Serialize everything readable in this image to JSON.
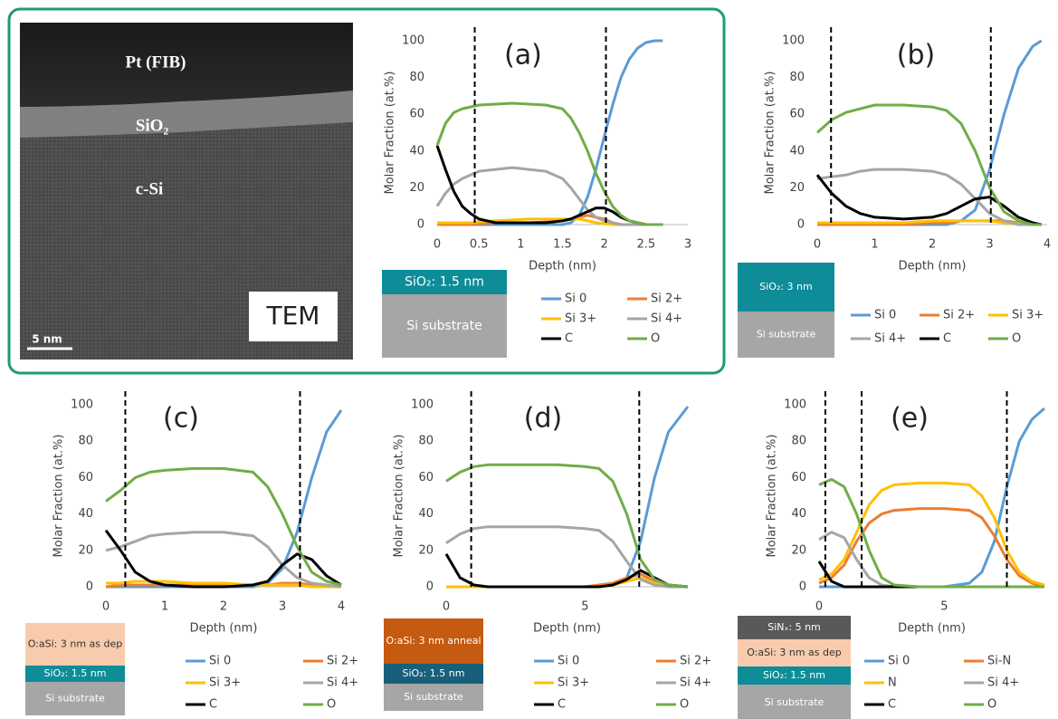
{
  "tem": {
    "layer_top": "Pt (FIB)",
    "layer_mid": "SiO₂",
    "layer_bottom": "c-Si",
    "label": "TEM",
    "scale_bar": "5 nm"
  },
  "chart_data": [
    {
      "type": "line",
      "label": "(a)",
      "y_label": "Molar Fraction (at.%)",
      "x_label": "Depth (nm)",
      "xlim": [
        0,
        3
      ],
      "xticks": [
        0,
        0.5,
        1,
        1.5,
        2,
        2.5,
        3
      ],
      "ylim": [
        0,
        100
      ],
      "yticks": [
        0,
        20,
        40,
        60,
        80,
        100
      ],
      "vlines": [
        0.45,
        2.02
      ],
      "legend_columns": 2,
      "stack": [
        {
          "label": "SiO₂: 1.5 nm",
          "color": "#0e8c98",
          "text_color": "#ffffff"
        },
        {
          "label": "Si substrate",
          "color": "#a6a6a6",
          "text_color": "#ffffff"
        }
      ],
      "x": [
        0,
        0.1,
        0.2,
        0.3,
        0.4,
        0.5,
        0.7,
        0.9,
        1.1,
        1.3,
        1.5,
        1.6,
        1.7,
        1.8,
        1.9,
        2.0,
        2.1,
        2.2,
        2.3,
        2.4,
        2.5,
        2.6,
        2.7
      ],
      "series": [
        {
          "name": "Si 0",
          "color": "#5b9bd5",
          "values": [
            0,
            0,
            0,
            0,
            0,
            0,
            0,
            0,
            0,
            0,
            0,
            1,
            5,
            15,
            30,
            48,
            65,
            80,
            90,
            96,
            99,
            100,
            100
          ]
        },
        {
          "name": "Si 2+",
          "color": "#ed7d31",
          "values": [
            0,
            0,
            0,
            0,
            0,
            0.5,
            1,
            1,
            1,
            1.5,
            2,
            3,
            4,
            5,
            4,
            3,
            1,
            0,
            0,
            0,
            0,
            0,
            0
          ]
        },
        {
          "name": "Si 3+",
          "color": "#ffc000",
          "values": [
            1,
            1,
            1,
            1,
            1,
            1.5,
            2,
            2.5,
            3,
            3,
            3,
            3,
            3,
            2,
            1,
            0.5,
            0,
            0,
            0,
            0,
            0,
            0,
            0
          ]
        },
        {
          "name": "Si 4+",
          "color": "#a5a5a5",
          "values": [
            10,
            17,
            22,
            25,
            27,
            29,
            30,
            31,
            30,
            29,
            25,
            20,
            14,
            8,
            4,
            2,
            1,
            0,
            0,
            0,
            0,
            0,
            0
          ]
        },
        {
          "name": "C",
          "color": "#000000",
          "values": [
            43,
            30,
            18,
            10,
            6,
            3,
            1,
            1,
            1,
            1,
            2,
            3,
            5,
            7,
            9,
            9,
            7,
            4,
            2,
            1,
            0,
            0,
            0
          ]
        },
        {
          "name": "O",
          "color": "#70ad47",
          "values": [
            43,
            55,
            61,
            63,
            64,
            65,
            65.5,
            66,
            65.5,
            65,
            63,
            58,
            50,
            40,
            28,
            18,
            10,
            5,
            2,
            1,
            0,
            0,
            0
          ]
        }
      ]
    },
    {
      "type": "line",
      "label": "(b)",
      "y_label": "Molar Fraction (at.%)",
      "x_label": "Depth (nm)",
      "xlim": [
        0,
        4
      ],
      "xticks": [
        0,
        1,
        2,
        3,
        4
      ],
      "ylim": [
        0,
        100
      ],
      "yticks": [
        0,
        20,
        40,
        60,
        80,
        100
      ],
      "vlines": [
        0.24,
        3.02
      ],
      "legend_columns": 3,
      "stack": [
        {
          "label": "SiO₂: 3 nm",
          "color": "#0e8c98",
          "text_color": "#ffffff"
        },
        {
          "label": "Si substrate",
          "color": "#a6a6a6",
          "text_color": "#ffffff"
        }
      ],
      "x": [
        0,
        0.25,
        0.5,
        0.75,
        1,
        1.5,
        2,
        2.25,
        2.5,
        2.75,
        3,
        3.25,
        3.5,
        3.75,
        3.9
      ],
      "series": [
        {
          "name": "Si 0",
          "color": "#5b9bd5",
          "values": [
            0,
            0,
            0,
            0,
            0,
            0,
            0,
            0,
            2,
            8,
            30,
            60,
            85,
            97,
            100
          ]
        },
        {
          "name": "Si 2+",
          "color": "#ed7d31",
          "values": [
            0,
            0,
            0,
            0,
            0,
            0,
            1,
            1,
            2,
            2,
            2,
            2,
            1,
            0,
            0
          ]
        },
        {
          "name": "Si 3+",
          "color": "#ffc000",
          "values": [
            1,
            1,
            1,
            1,
            1,
            1,
            2,
            2,
            2,
            2,
            2,
            1,
            0.5,
            0,
            0
          ]
        },
        {
          "name": "Si 4+",
          "color": "#a5a5a5",
          "values": [
            25,
            26,
            27,
            29,
            30,
            30,
            29,
            27,
            22,
            14,
            6,
            2,
            0,
            0,
            0
          ]
        },
        {
          "name": "C",
          "color": "#000000",
          "values": [
            27,
            17,
            10,
            6,
            4,
            3,
            4,
            6,
            10,
            14,
            15,
            10,
            4,
            1,
            0
          ]
        },
        {
          "name": "O",
          "color": "#70ad47",
          "values": [
            50,
            57,
            61,
            63,
            65,
            65,
            64,
            62,
            55,
            40,
            20,
            7,
            2,
            0,
            0
          ]
        }
      ]
    },
    {
      "type": "line",
      "label": "(c)",
      "y_label": "Molar Fraction (at.%)",
      "x_label": "Depth (nm)",
      "xlim": [
        0,
        4
      ],
      "xticks": [
        0,
        1,
        2,
        3,
        4
      ],
      "ylim": [
        0,
        100
      ],
      "yticks": [
        0,
        20,
        40,
        60,
        80,
        100
      ],
      "vlines": [
        0.33,
        3.3
      ],
      "legend_columns": 2,
      "stack": [
        {
          "label": "O:aSi: 3 nm as dep",
          "color": "#f8cbad",
          "text_color": "#333333"
        },
        {
          "label": "SiO₂: 1.5 nm",
          "color": "#0e8c98",
          "text_color": "#ffffff"
        },
        {
          "label": "Si substrate",
          "color": "#a6a6a6",
          "text_color": "#ffffff"
        }
      ],
      "x": [
        0,
        0.25,
        0.5,
        0.75,
        1,
        1.5,
        2,
        2.5,
        2.75,
        3,
        3.25,
        3.5,
        3.75,
        4
      ],
      "series": [
        {
          "name": "Si 0",
          "color": "#5b9bd5",
          "values": [
            0,
            0,
            0,
            0,
            0,
            0,
            0,
            0,
            2,
            10,
            30,
            60,
            85,
            97
          ]
        },
        {
          "name": "Si 2+",
          "color": "#ed7d31",
          "values": [
            0,
            1,
            1,
            1,
            1,
            1,
            1,
            1,
            1,
            2,
            2,
            1,
            0,
            0
          ]
        },
        {
          "name": "Si 3+",
          "color": "#ffc000",
          "values": [
            2,
            2,
            3,
            3,
            3,
            2,
            2,
            1,
            1,
            1,
            1,
            0,
            0,
            0
          ]
        },
        {
          "name": "Si 4+",
          "color": "#a5a5a5",
          "values": [
            20,
            22,
            25,
            28,
            29,
            30,
            30,
            28,
            22,
            12,
            5,
            2,
            1,
            0
          ]
        },
        {
          "name": "C",
          "color": "#000000",
          "values": [
            31,
            20,
            8,
            3,
            1,
            0,
            0,
            1,
            3,
            12,
            18,
            15,
            6,
            1
          ]
        },
        {
          "name": "O",
          "color": "#70ad47",
          "values": [
            47,
            53,
            60,
            63,
            64,
            65,
            65,
            63,
            55,
            40,
            22,
            8,
            3,
            1
          ]
        }
      ]
    },
    {
      "type": "line",
      "label": "(d)",
      "y_label": "Molar Fraction (at.%)",
      "x_label": "Depth (nm)",
      "xlim": [
        0,
        8.7
      ],
      "xticks": [
        0,
        5
      ],
      "ylim": [
        0,
        100
      ],
      "yticks": [
        0,
        20,
        40,
        60,
        80,
        100
      ],
      "vlines": [
        0.9,
        6.95
      ],
      "legend_columns": 2,
      "stack": [
        {
          "label": "O:aSi: 3 nm anneal",
          "color": "#c55a11",
          "text_color": "#ffffff"
        },
        {
          "label": "SiO₂: 1.5 nm",
          "color": "#175f7a",
          "text_color": "#ffffff"
        },
        {
          "label": "Si substrate",
          "color": "#a6a6a6",
          "text_color": "#ffffff"
        }
      ],
      "x": [
        0,
        0.5,
        1,
        1.5,
        2,
        3,
        4,
        5,
        5.5,
        6,
        6.5,
        7,
        7.5,
        8,
        8.7
      ],
      "series": [
        {
          "name": "Si 0",
          "color": "#5b9bd5",
          "values": [
            0,
            0,
            0,
            0,
            0,
            0,
            0,
            0,
            0,
            1,
            5,
            25,
            60,
            85,
            99
          ]
        },
        {
          "name": "Si 2+",
          "color": "#ed7d31",
          "values": [
            0,
            0,
            0,
            0,
            0,
            0,
            0,
            0,
            1,
            2,
            5,
            7,
            3,
            1,
            0
          ]
        },
        {
          "name": "Si 3+",
          "color": "#ffc000",
          "values": [
            0,
            0,
            0,
            0,
            0,
            0,
            0,
            0,
            0,
            1,
            3,
            5,
            2,
            0,
            0
          ]
        },
        {
          "name": "Si 4+",
          "color": "#a5a5a5",
          "values": [
            24,
            29,
            32,
            33,
            33,
            33,
            33,
            32,
            31,
            25,
            14,
            4,
            1,
            0,
            0
          ]
        },
        {
          "name": "C",
          "color": "#000000",
          "values": [
            18,
            5,
            1,
            0,
            0,
            0,
            0,
            0,
            0,
            1,
            4,
            9,
            5,
            1,
            0
          ]
        },
        {
          "name": "O",
          "color": "#70ad47",
          "values": [
            58,
            63,
            66,
            67,
            67,
            67,
            67,
            66,
            65,
            58,
            40,
            15,
            4,
            1,
            0
          ]
        }
      ]
    },
    {
      "type": "line",
      "label": "(e)",
      "y_label": "Molar Fraction (at.%)",
      "x_label": "Depth (nm)",
      "xlim": [
        0,
        9
      ],
      "xticks": [
        0,
        5
      ],
      "ylim": [
        0,
        100
      ],
      "yticks": [
        0,
        20,
        40,
        60,
        80,
        100
      ],
      "vlines": [
        0.25,
        1.7,
        7.5
      ],
      "legend_columns": 2,
      "stack": [
        {
          "label": "SiNₓ: 5 nm",
          "color": "#595959",
          "text_color": "#ffffff"
        },
        {
          "label": "O:aSi: 3 nm as dep",
          "color": "#f8cbad",
          "text_color": "#333333"
        },
        {
          "label": "SiO₂: 1.5 nm",
          "color": "#0e8c98",
          "text_color": "#ffffff"
        },
        {
          "label": "Si substrate",
          "color": "#a6a6a6",
          "text_color": "#ffffff"
        }
      ],
      "x": [
        0,
        0.5,
        1,
        1.5,
        2,
        2.5,
        3,
        4,
        5,
        6,
        6.5,
        7,
        7.5,
        8,
        8.5,
        9
      ],
      "series": [
        {
          "name": "Si 0",
          "color": "#5b9bd5",
          "values": [
            0,
            0,
            0,
            0,
            0,
            0,
            0,
            0,
            0,
            2,
            8,
            25,
            55,
            80,
            92,
            98
          ]
        },
        {
          "name": "Si-N",
          "color": "#ed7d31",
          "values": [
            2,
            5,
            12,
            25,
            35,
            40,
            42,
            43,
            43,
            42,
            38,
            28,
            15,
            6,
            2,
            0
          ]
        },
        {
          "name": "N",
          "color": "#ffc000",
          "values": [
            4,
            7,
            15,
            30,
            45,
            53,
            56,
            57,
            57,
            56,
            50,
            38,
            20,
            8,
            3,
            1
          ]
        },
        {
          "name": "Si 4+",
          "color": "#a5a5a5",
          "values": [
            26,
            30,
            27,
            15,
            5,
            1,
            0,
            0,
            0,
            0,
            0,
            0,
            0,
            0,
            0,
            0
          ]
        },
        {
          "name": "C",
          "color": "#000000",
          "values": [
            14,
            3,
            0,
            0,
            0,
            0,
            0,
            0,
            0,
            0,
            0,
            0,
            0,
            0,
            0,
            0
          ]
        },
        {
          "name": "O",
          "color": "#70ad47",
          "values": [
            56,
            59,
            55,
            40,
            20,
            5,
            1,
            0,
            0,
            0,
            0,
            0,
            0,
            0,
            0,
            0
          ]
        }
      ]
    }
  ]
}
